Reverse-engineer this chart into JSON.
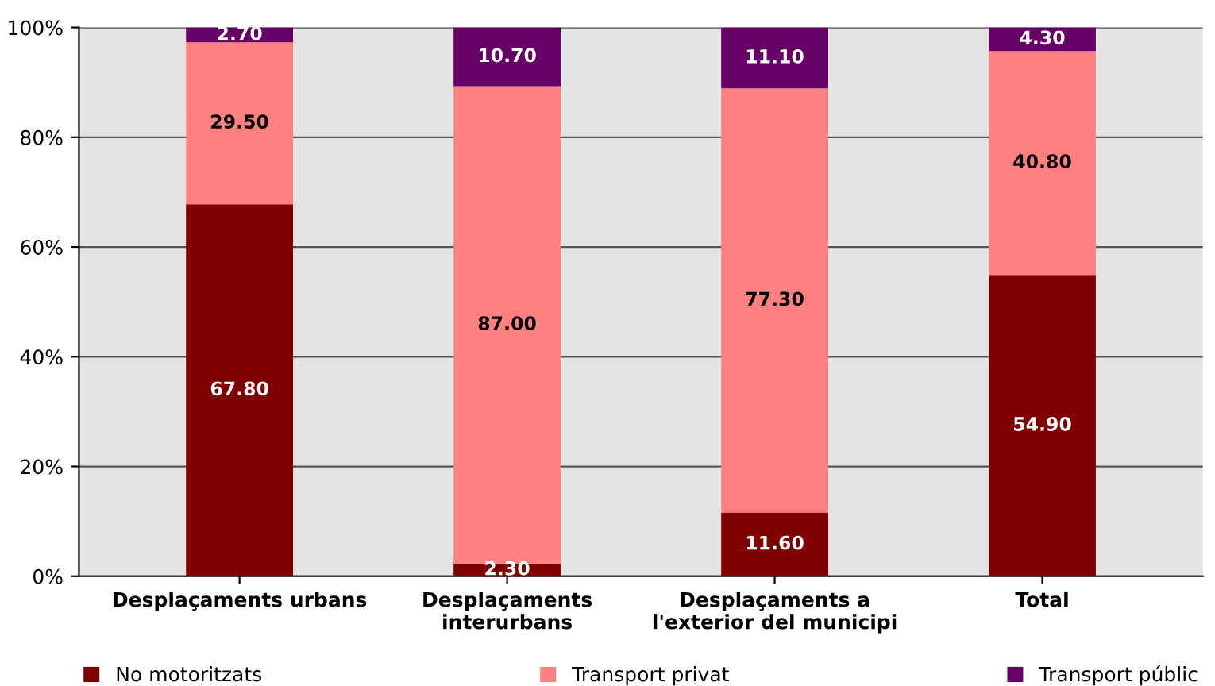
{
  "chart_data": {
    "type": "bar",
    "stacked": true,
    "categories": [
      "Desplaçaments urbans",
      "Desplaçaments\ninterurbans",
      "Desplaçaments a\nl'exterior del municipi",
      "Total"
    ],
    "series": [
      {
        "name": "No motoritzats",
        "color": "#800000",
        "values": [
          67.8,
          2.3,
          11.6,
          54.9
        ],
        "value_labels": [
          "67.80",
          "2.30",
          "11.60",
          "54.90"
        ]
      },
      {
        "name": "Transport privat",
        "color": "#ff8080",
        "values": [
          29.5,
          87.0,
          77.3,
          40.8
        ],
        "value_labels": [
          "29.50",
          "87.00",
          "77.30",
          "40.80"
        ]
      },
      {
        "name": "Transport públic",
        "color": "#660066",
        "values": [
          2.7,
          10.7,
          11.1,
          4.3
        ],
        "value_labels": [
          "2.70",
          "10.70",
          "11.10",
          "4.30"
        ]
      }
    ],
    "ylim": [
      0,
      100
    ],
    "yticks": [
      {
        "value": 0,
        "label": "0%"
      },
      {
        "value": 20,
        "label": "20%"
      },
      {
        "value": 40,
        "label": "40%"
      },
      {
        "value": 60,
        "label": "60%"
      },
      {
        "value": 80,
        "label": "80%"
      },
      {
        "value": 100,
        "label": "100%"
      }
    ],
    "grid": "y",
    "legend": "bottom"
  }
}
